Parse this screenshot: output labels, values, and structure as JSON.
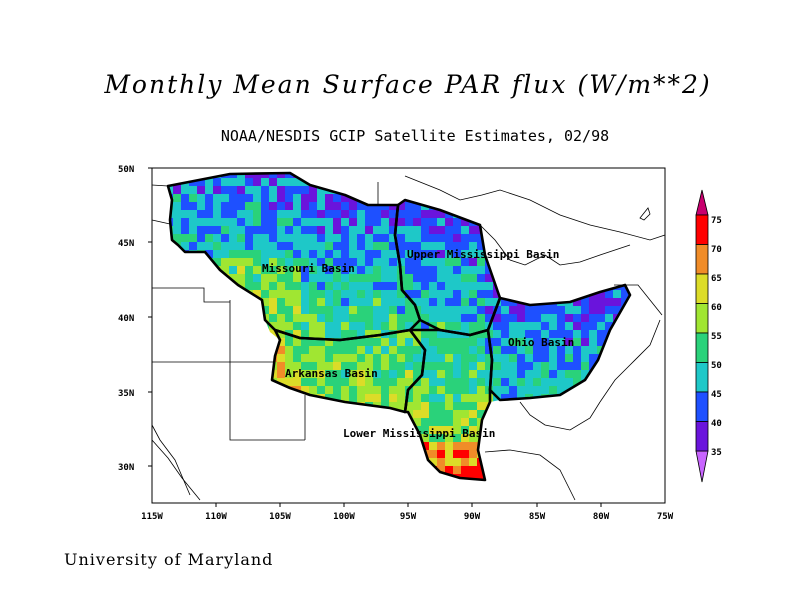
{
  "title": "Monthly Mean Surface PAR flux (W/m**2)",
  "subtitle": "NOAA/NESDIS GCIP Satellite Estimates, 02/98",
  "footer": "University of Maryland",
  "map": {
    "lat_ticks": [
      "50N",
      "45N",
      "40N",
      "35N",
      "30N"
    ],
    "lon_ticks": [
      "115W",
      "110W",
      "105W",
      "100W",
      "95W",
      "90W",
      "85W",
      "80W",
      "75W"
    ],
    "lat_range": [
      27.5,
      50
    ],
    "lon_range": [
      -115,
      -75
    ],
    "basins": [
      {
        "name": "Missouri Basin"
      },
      {
        "name": "Upper Mississippi Basin"
      },
      {
        "name": "Ohio Basin"
      },
      {
        "name": "Arkansas Basin"
      },
      {
        "name": "Lower Mississippi Basin"
      }
    ]
  },
  "legend": {
    "labels": [
      "75",
      "70",
      "65",
      "60",
      "55",
      "50",
      "45",
      "40",
      "35"
    ],
    "colors": [
      "#ff0000",
      "#f08c28",
      "#dcdc28",
      "#a0e632",
      "#2ad27a",
      "#1ec8c8",
      "#1e50ff",
      "#6a14dc"
    ],
    "tip_top_color": "#c8006e",
    "tip_bottom_color": "#c864ff"
  }
}
